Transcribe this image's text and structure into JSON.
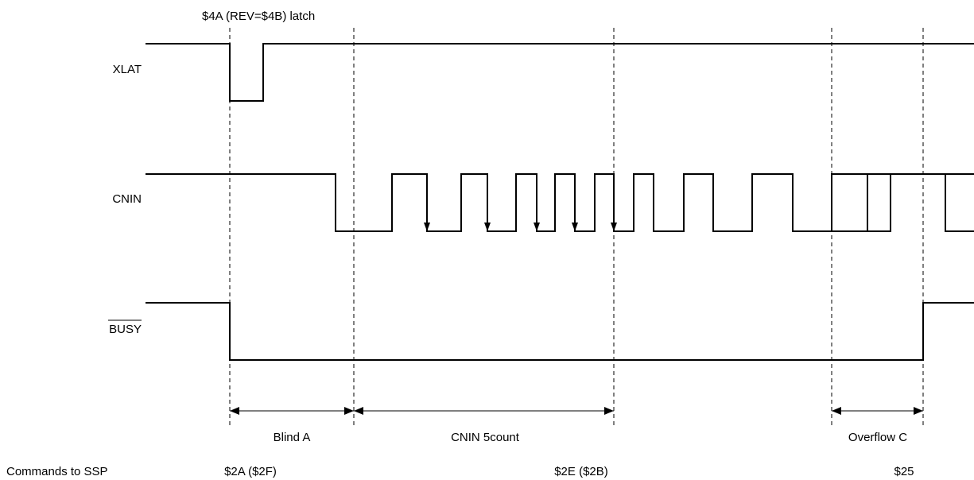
{
  "annotation": "$4A (REV=$4B) latch",
  "signals": {
    "xlat": "XLAT",
    "cnin": "CNIN",
    "busy": "BUSY"
  },
  "intervals": {
    "blind_a": "Blind A",
    "cnin_count": "CNIN 5count",
    "overflow_c": "Overflow C"
  },
  "commands": {
    "label": "Commands to SSP",
    "first": "$2A ($2F)",
    "second": "$2E ($2B)",
    "third": "$25"
  }
}
